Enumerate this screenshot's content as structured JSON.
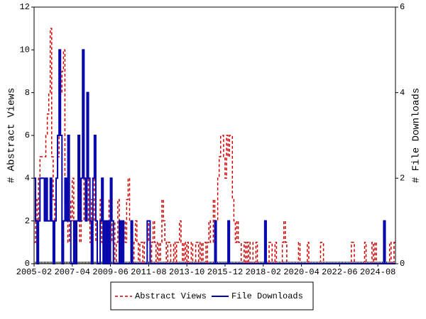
{
  "chart_data": {
    "type": "line",
    "categories": [
      "2005-02",
      "2005-03",
      "2005-04",
      "2005-05",
      "2005-06",
      "2005-07",
      "2005-08",
      "2005-09",
      "2005-10",
      "2005-11",
      "2005-12",
      "2006-01",
      "2006-02",
      "2006-03",
      "2006-04",
      "2006-05",
      "2006-06",
      "2006-07",
      "2006-08",
      "2006-09",
      "2006-10",
      "2006-11",
      "2006-12",
      "2007-01",
      "2007-02",
      "2007-03",
      "2007-04",
      "2007-05",
      "2007-06",
      "2007-07",
      "2007-08",
      "2007-09",
      "2007-10",
      "2007-11",
      "2007-12",
      "2008-01",
      "2008-02",
      "2008-03",
      "2008-04",
      "2008-05",
      "2008-06",
      "2008-07",
      "2008-08",
      "2008-09",
      "2008-10",
      "2008-11",
      "2008-12",
      "2009-01",
      "2009-02",
      "2009-03",
      "2009-04",
      "2009-05",
      "2009-06",
      "2009-07",
      "2009-08",
      "2009-09",
      "2009-10",
      "2009-11",
      "2009-12",
      "2010-01",
      "2010-02",
      "2010-03",
      "2010-04",
      "2010-05",
      "2010-06",
      "2010-07",
      "2010-08",
      "2010-09",
      "2010-10",
      "2010-11",
      "2010-12",
      "2011-01",
      "2011-02",
      "2011-03",
      "2011-04",
      "2011-05",
      "2011-06",
      "2011-07",
      "2011-08",
      "2011-09",
      "2011-10",
      "2011-11",
      "2011-12",
      "2012-01",
      "2012-02",
      "2012-03",
      "2012-04",
      "2012-05",
      "2012-06",
      "2012-07",
      "2012-08",
      "2012-09",
      "2012-10",
      "2012-11",
      "2012-12",
      "2013-01",
      "2013-02",
      "2013-03",
      "2013-04",
      "2013-05",
      "2013-06",
      "2013-07",
      "2013-08",
      "2013-09",
      "2013-10",
      "2013-11",
      "2013-12",
      "2014-01",
      "2014-02",
      "2014-03",
      "2014-04",
      "2014-05",
      "2014-06",
      "2014-07",
      "2014-08",
      "2014-09",
      "2014-10",
      "2014-11",
      "2014-12",
      "2015-01",
      "2015-02",
      "2015-03",
      "2015-04",
      "2015-05",
      "2015-06",
      "2015-07",
      "2015-08",
      "2015-09",
      "2015-10",
      "2015-11",
      "2015-12",
      "2016-01",
      "2016-02",
      "2016-03",
      "2016-04",
      "2016-05",
      "2016-06",
      "2016-07",
      "2016-08",
      "2016-09",
      "2016-10",
      "2016-11",
      "2016-12",
      "2017-01",
      "2017-02",
      "2017-03",
      "2017-04",
      "2017-05",
      "2017-06",
      "2017-07",
      "2017-08",
      "2017-09",
      "2017-10",
      "2017-11",
      "2017-12",
      "2018-01",
      "2018-02",
      "2018-03",
      "2018-04",
      "2018-05",
      "2018-06",
      "2018-07",
      "2018-08",
      "2018-09",
      "2018-10",
      "2018-11",
      "2018-12",
      "2019-01",
      "2019-02",
      "2019-03",
      "2019-04",
      "2019-05",
      "2019-06",
      "2019-07",
      "2019-08",
      "2019-09",
      "2019-10",
      "2019-11",
      "2019-12",
      "2020-01",
      "2020-02",
      "2020-03",
      "2020-04",
      "2020-05",
      "2020-06",
      "2020-07",
      "2020-08",
      "2020-09",
      "2020-10",
      "2020-11",
      "2020-12",
      "2021-01",
      "2021-02",
      "2021-03",
      "2021-04",
      "2021-05",
      "2021-06",
      "2021-07",
      "2021-08",
      "2021-09",
      "2021-10",
      "2021-11",
      "2021-12",
      "2022-01",
      "2022-02",
      "2022-03",
      "2022-04",
      "2022-05",
      "2022-06",
      "2022-07",
      "2022-08",
      "2022-09",
      "2022-10",
      "2022-11",
      "2022-12",
      "2023-01",
      "2023-02",
      "2023-03",
      "2023-04",
      "2023-05",
      "2023-06",
      "2023-07",
      "2023-08",
      "2023-09",
      "2023-10",
      "2023-11",
      "2023-12",
      "2024-01",
      "2024-02",
      "2024-03",
      "2024-04",
      "2024-05",
      "2024-06",
      "2024-07",
      "2024-08",
      "2024-09",
      "2024-10",
      "2024-11",
      "2024-12",
      "2025-01",
      "2025-02",
      "2025-03",
      "2025-04",
      "2025-05",
      "2025-06",
      "2025-07",
      "2025-08"
    ],
    "series": [
      {
        "name": "Abstract Views",
        "color": "#cc0000",
        "axis": "y",
        "values": [
          1,
          3,
          2,
          4,
          5,
          5,
          5,
          5,
          6,
          7,
          8,
          11,
          5,
          3,
          2,
          4,
          5,
          6,
          8,
          9,
          10,
          3,
          2,
          1,
          3,
          2,
          4,
          2,
          1,
          2,
          3,
          1,
          2,
          2,
          4,
          3,
          4,
          2,
          1,
          3,
          2,
          4,
          1,
          2,
          2,
          3,
          1,
          0,
          1,
          2,
          1,
          3,
          2,
          1,
          2,
          0,
          1,
          3,
          2,
          1,
          0,
          2,
          1,
          3,
          4,
          2,
          1,
          0,
          1,
          2,
          1,
          0,
          1,
          1,
          0,
          1,
          1,
          2,
          1,
          0,
          1,
          2,
          1,
          0,
          1,
          0,
          1,
          3,
          2,
          1,
          0,
          1,
          1,
          0,
          0,
          1,
          0,
          1,
          1,
          2,
          1,
          0,
          1,
          0,
          1,
          0,
          0,
          1,
          0,
          0,
          1,
          1,
          0,
          1,
          0,
          1,
          1,
          0,
          1,
          2,
          1,
          1,
          3,
          2,
          2,
          4,
          5,
          6,
          6,
          5,
          4,
          6,
          5,
          6,
          6,
          3,
          2,
          1,
          2,
          1,
          1,
          0,
          0,
          1,
          0,
          1,
          0,
          1,
          1,
          0,
          0,
          1,
          0,
          0,
          0,
          0,
          0,
          1,
          0,
          0,
          1,
          1,
          0,
          0,
          1,
          0,
          0,
          0,
          0,
          1,
          2,
          1,
          0,
          0,
          0,
          0,
          0,
          0,
          0,
          0,
          1,
          0,
          0,
          0,
          0,
          0,
          1,
          0,
          0,
          0,
          0,
          0,
          0,
          0,
          0,
          1,
          1,
          0,
          0,
          0,
          0,
          0,
          0,
          0,
          0,
          0,
          0,
          0,
          0,
          0,
          0,
          0,
          0,
          0,
          0,
          0,
          1,
          1,
          0,
          0,
          0,
          0,
          0,
          0,
          0,
          1,
          0,
          0,
          0,
          0,
          1,
          0,
          1,
          0,
          0,
          0,
          0,
          0,
          1,
          0,
          0,
          0,
          1,
          0,
          0,
          1,
          1
        ]
      },
      {
        "name": "File Downloads",
        "color": "#0000aa",
        "axis": "y2",
        "values": [
          2,
          1,
          0,
          1,
          2,
          2,
          2,
          1,
          2,
          1,
          1,
          2,
          1,
          0,
          1,
          2,
          3,
          5,
          3,
          0,
          1,
          2,
          1,
          3,
          1,
          0,
          0,
          1,
          0,
          1,
          3,
          1,
          2,
          5,
          2,
          1,
          4,
          2,
          1,
          0,
          2,
          3,
          1,
          0,
          0,
          1,
          2,
          0,
          1,
          0,
          1,
          0,
          2,
          1,
          0,
          0,
          0,
          0,
          1,
          0,
          1,
          0,
          0,
          0,
          0,
          0,
          1,
          0,
          0,
          0,
          0,
          0,
          0,
          0,
          0,
          0,
          0,
          1,
          1,
          0,
          0,
          0,
          0,
          0,
          0,
          0,
          0,
          0,
          0,
          0,
          0,
          0,
          0,
          0,
          0,
          0,
          0,
          0,
          0,
          0,
          0,
          0,
          0,
          0,
          0,
          0,
          0,
          0,
          0,
          0,
          0,
          0,
          0,
          0,
          0,
          0,
          0,
          0,
          0,
          0,
          0,
          0,
          0,
          1,
          0,
          0,
          0,
          0,
          0,
          0,
          0,
          0,
          1,
          0,
          0,
          0,
          0,
          0,
          0,
          0,
          0,
          0,
          0,
          0,
          0,
          0,
          0,
          0,
          0,
          0,
          0,
          0,
          0,
          0,
          0,
          0,
          0,
          1,
          0,
          0,
          0,
          0,
          0,
          0,
          0,
          0,
          0,
          0,
          0,
          0,
          0,
          0,
          0,
          0,
          0,
          0,
          0,
          0,
          0,
          0,
          0,
          0,
          0,
          0,
          0,
          0,
          0,
          0,
          0,
          0,
          0,
          0,
          0,
          0,
          0,
          0,
          0,
          0,
          0,
          0,
          0,
          0,
          0,
          0,
          0,
          0,
          0,
          0,
          0,
          0,
          0,
          0,
          0,
          0,
          0,
          0,
          0,
          0,
          0,
          0,
          0,
          0,
          0,
          0,
          0,
          0,
          0,
          0,
          0,
          0,
          0,
          0,
          0,
          0,
          0,
          0,
          0,
          0,
          1,
          0,
          0,
          0,
          0,
          0,
          0,
          0,
          0
        ]
      }
    ],
    "xticks": [
      "2005-02",
      "2007-04",
      "2009-06",
      "2011-08",
      "2013-10",
      "2015-12",
      "2018-02",
      "2020-04",
      "2022-06",
      "2024-08"
    ],
    "ylabel": "# Abstract Views",
    "y2label": "# File Downloads",
    "ylim": [
      0,
      12
    ],
    "yticks": [
      0,
      2,
      4,
      6,
      8,
      10,
      12
    ],
    "y2lim": [
      0,
      6
    ],
    "y2ticks": [
      0,
      2,
      4,
      6
    ],
    "grid": false,
    "legend": "bottom"
  }
}
